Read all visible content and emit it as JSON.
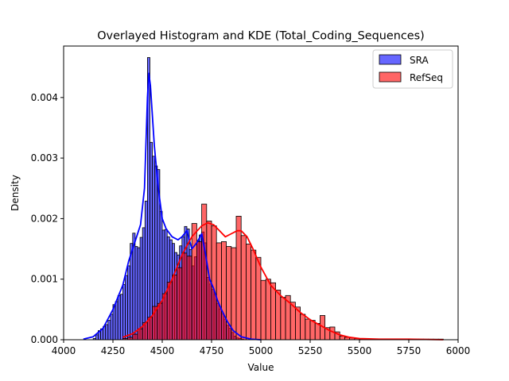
{
  "chart_data": {
    "type": "bar",
    "title": "Overlayed Histogram and KDE (Total_Coding_Sequences)",
    "xlabel": "Value",
    "ylabel": "Density",
    "xlim": [
      4000,
      6000
    ],
    "ylim": [
      0,
      0.00485
    ],
    "xticks": [
      4000,
      4250,
      4500,
      4750,
      5000,
      5250,
      5500,
      5750,
      6000
    ],
    "yticks": [
      0,
      0.001,
      0.002,
      0.003,
      0.004
    ],
    "ytick_labels": [
      "0.000",
      "0.001",
      "0.002",
      "0.003",
      "0.004"
    ],
    "legend_position": "top-right",
    "series": [
      {
        "name": "SRA",
        "color": "#0000ff",
        "bin_width": 12.5,
        "bins": [
          [
            4150,
            2e-05
          ],
          [
            4162.5,
            8e-05
          ],
          [
            4175,
            0.00015
          ],
          [
            4187.5,
            0.00018
          ],
          [
            4200,
            0.00022
          ],
          [
            4212.5,
            0.00025
          ],
          [
            4225,
            0.00032
          ],
          [
            4237.5,
            0.00042
          ],
          [
            4250,
            0.00058
          ],
          [
            4262.5,
            0.00063
          ],
          [
            4275,
            0.00073
          ],
          [
            4287.5,
            0.00075
          ],
          [
            4300,
            0.00091
          ],
          [
            4312.5,
            0.00106
          ],
          [
            4325,
            0.00122
          ],
          [
            4337.5,
            0.00159
          ],
          [
            4350,
            0.00176
          ],
          [
            4362.5,
            0.00154
          ],
          [
            4375,
            0.00152
          ],
          [
            4387.5,
            0.00169
          ],
          [
            4400,
            0.00185
          ],
          [
            4412.5,
            0.00229
          ],
          [
            4425,
            0.00466
          ],
          [
            4437.5,
            0.00326
          ],
          [
            4450,
            0.00303
          ],
          [
            4462.5,
            0.00287
          ],
          [
            4475,
            0.00281
          ],
          [
            4487.5,
            0.00212
          ],
          [
            4500,
            0.00181
          ],
          [
            4512.5,
            0.00182
          ],
          [
            4525,
            0.0017
          ],
          [
            4537.5,
            0.00165
          ],
          [
            4550,
            0.00159
          ],
          [
            4562.5,
            0.00144
          ],
          [
            4575,
            0.0014
          ],
          [
            4587.5,
            0.00155
          ],
          [
            4600,
            0.0017
          ],
          [
            4612.5,
            0.00187
          ],
          [
            4625,
            0.00183
          ],
          [
            4637.5,
            0.00149
          ],
          [
            4650,
            0.00122
          ],
          [
            4662.5,
            0.00137
          ],
          [
            4675,
            0.00164
          ],
          [
            4687.5,
            0.00173
          ],
          [
            4700,
            0.00178
          ],
          [
            4712.5,
            0.0016
          ],
          [
            4725,
            0.00103
          ],
          [
            4737.5,
            0.00092
          ],
          [
            4750,
            0.00083
          ],
          [
            4762.5,
            0.00075
          ],
          [
            4775,
            0.0006
          ],
          [
            4787.5,
            0.00051
          ],
          [
            4800,
            0.00043
          ],
          [
            4812.5,
            0.00034
          ],
          [
            4825,
            0.00024
          ],
          [
            4837.5,
            0.00019
          ],
          [
            4850,
            0.00012
          ],
          [
            4862.5,
            6e-05
          ],
          [
            4875,
            3e-05
          ],
          [
            4887.5,
            2e-05
          ],
          [
            4900,
            1e-05
          ]
        ],
        "kde": [
          [
            4100,
            1e-05
          ],
          [
            4150,
            5e-05
          ],
          [
            4200,
            0.00019
          ],
          [
            4250,
            0.0005
          ],
          [
            4300,
            0.0009
          ],
          [
            4330,
            0.0013
          ],
          [
            4360,
            0.0016
          ],
          [
            4390,
            0.0019
          ],
          [
            4410,
            0.0025
          ],
          [
            4425,
            0.004
          ],
          [
            4432,
            0.0044
          ],
          [
            4440,
            0.0042
          ],
          [
            4460,
            0.0032
          ],
          [
            4480,
            0.0025
          ],
          [
            4500,
            0.002
          ],
          [
            4520,
            0.00183
          ],
          [
            4550,
            0.0017
          ],
          [
            4580,
            0.00165
          ],
          [
            4600,
            0.0017
          ],
          [
            4625,
            0.0018
          ],
          [
            4650,
            0.0015
          ],
          [
            4675,
            0.0016
          ],
          [
            4700,
            0.00175
          ],
          [
            4720,
            0.0014
          ],
          [
            4740,
            0.001
          ],
          [
            4760,
            0.00085
          ],
          [
            4780,
            0.00065
          ],
          [
            4800,
            0.0005
          ],
          [
            4830,
            0.0003
          ],
          [
            4860,
            0.00015
          ],
          [
            4900,
            5e-05
          ],
          [
            4950,
            1e-05
          ],
          [
            5000,
            0.0
          ]
        ]
      },
      {
        "name": "RefSeq",
        "color": "#ff0000",
        "bin_width": 25,
        "bins": [
          [
            4300,
            2e-05
          ],
          [
            4325,
            4e-05
          ],
          [
            4350,
            9e-05
          ],
          [
            4375,
            0.00018
          ],
          [
            4400,
            0.00028
          ],
          [
            4425,
            0.00037
          ],
          [
            4450,
            0.00055
          ],
          [
            4475,
            0.0006
          ],
          [
            4500,
            0.00076
          ],
          [
            4525,
            0.00095
          ],
          [
            4550,
            0.00107
          ],
          [
            4575,
            0.00119
          ],
          [
            4600,
            0.00143
          ],
          [
            4625,
            0.00138
          ],
          [
            4650,
            0.00192
          ],
          [
            4675,
            0.00162
          ],
          [
            4700,
            0.00224
          ],
          [
            4725,
            0.00196
          ],
          [
            4750,
            0.00188
          ],
          [
            4775,
            0.0016
          ],
          [
            4800,
            0.00162
          ],
          [
            4825,
            0.00154
          ],
          [
            4850,
            0.00152
          ],
          [
            4875,
            0.00204
          ],
          [
            4900,
            0.00172
          ],
          [
            4925,
            0.00158
          ],
          [
            4950,
            0.00148
          ],
          [
            4975,
            0.00136
          ],
          [
            5000,
            0.00098
          ],
          [
            5025,
            0.001
          ],
          [
            5050,
            0.00094
          ],
          [
            5075,
            0.00082
          ],
          [
            5100,
            0.0007
          ],
          [
            5125,
            0.00073
          ],
          [
            5150,
            0.00062
          ],
          [
            5175,
            0.00054
          ],
          [
            5200,
            0.00042
          ],
          [
            5225,
            0.00034
          ],
          [
            5250,
            0.00032
          ],
          [
            5275,
            0.00027
          ],
          [
            5300,
            0.0004
          ],
          [
            5325,
            0.0002
          ],
          [
            5350,
            0.00021
          ],
          [
            5375,
            0.00013
          ],
          [
            5400,
            6e-05
          ],
          [
            5425,
            4e-05
          ],
          [
            5450,
            3e-05
          ],
          [
            5475,
            2e-05
          ],
          [
            5500,
            1e-05
          ],
          [
            5525,
            1e-05
          ],
          [
            5550,
            1e-05
          ],
          [
            5575,
            1e-05
          ],
          [
            5600,
            1e-05
          ],
          [
            5625,
            1e-05
          ],
          [
            5650,
            1e-05
          ],
          [
            5675,
            1e-05
          ],
          [
            5700,
            1e-05
          ],
          [
            5725,
            1e-05
          ],
          [
            5750,
            1e-05
          ],
          [
            5775,
            1e-05
          ],
          [
            5800,
            1e-05
          ],
          [
            5825,
            1e-05
          ],
          [
            5850,
            1e-05
          ],
          [
            5875,
            1e-05
          ],
          [
            5900,
            1e-05
          ]
        ],
        "kde": [
          [
            4300,
            4e-05
          ],
          [
            4350,
            0.0001
          ],
          [
            4400,
            0.00022
          ],
          [
            4450,
            0.0004
          ],
          [
            4500,
            0.00065
          ],
          [
            4550,
            0.001
          ],
          [
            4600,
            0.0014
          ],
          [
            4650,
            0.0017
          ],
          [
            4700,
            0.00188
          ],
          [
            4730,
            0.00193
          ],
          [
            4760,
            0.0019
          ],
          [
            4790,
            0.0018
          ],
          [
            4820,
            0.0017
          ],
          [
            4850,
            0.00175
          ],
          [
            4880,
            0.0018
          ],
          [
            4900,
            0.0018
          ],
          [
            4930,
            0.0017
          ],
          [
            4960,
            0.0015
          ],
          [
            5000,
            0.0012
          ],
          [
            5050,
            0.0009
          ],
          [
            5100,
            0.00073
          ],
          [
            5150,
            0.0006
          ],
          [
            5200,
            0.00045
          ],
          [
            5250,
            0.00033
          ],
          [
            5300,
            0.00024
          ],
          [
            5350,
            0.00015
          ],
          [
            5400,
            8e-05
          ],
          [
            5450,
            4e-05
          ],
          [
            5500,
            2e-05
          ],
          [
            5600,
            1e-05
          ],
          [
            5750,
            1e-05
          ],
          [
            5925,
            0.0
          ]
        ]
      }
    ]
  }
}
